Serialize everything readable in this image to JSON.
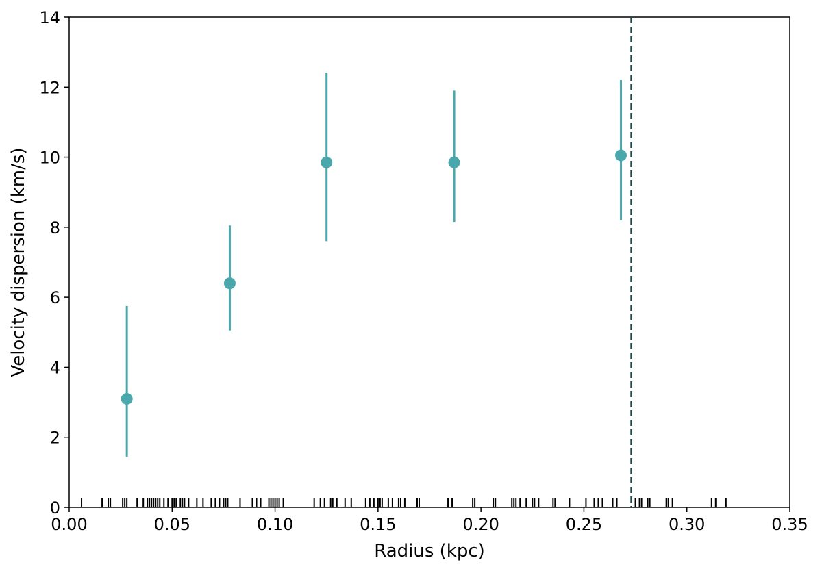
{
  "chart_data": {
    "type": "scatter",
    "xlabel": "Radius (kpc)",
    "ylabel": "Velocity dispersion (km/s)",
    "xlim": [
      0.0,
      0.35
    ],
    "ylim": [
      0,
      14
    ],
    "xticks": [
      0.0,
      0.05,
      0.1,
      0.15,
      0.2,
      0.25,
      0.3,
      0.35
    ],
    "xtick_labels": [
      "0.00",
      "0.05",
      "0.10",
      "0.15",
      "0.20",
      "0.25",
      "0.30",
      "0.35"
    ],
    "yticks": [
      0,
      2,
      4,
      6,
      8,
      10,
      12,
      14
    ],
    "ytick_labels": [
      "0",
      "2",
      "4",
      "6",
      "8",
      "10",
      "12",
      "14"
    ],
    "grid": false,
    "series": [
      {
        "color": "#4aa8ad",
        "points": [
          {
            "x": 0.028,
            "y": 3.1,
            "err_low": 1.45,
            "err_high": 5.75
          },
          {
            "x": 0.078,
            "y": 6.4,
            "err_low": 5.05,
            "err_high": 8.05
          },
          {
            "x": 0.125,
            "y": 9.85,
            "err_low": 7.6,
            "err_high": 12.4
          },
          {
            "x": 0.187,
            "y": 9.85,
            "err_low": 8.15,
            "err_high": 11.9
          },
          {
            "x": 0.268,
            "y": 10.05,
            "err_low": 8.2,
            "err_high": 12.2
          }
        ]
      }
    ],
    "vline": {
      "x": 0.273,
      "color": "#1f4a4a",
      "style": "dashed"
    },
    "rug": {
      "color": "#000000",
      "x": [
        0.006,
        0.016,
        0.019,
        0.02,
        0.026,
        0.027,
        0.028,
        0.033,
        0.036,
        0.038,
        0.039,
        0.04,
        0.041,
        0.042,
        0.043,
        0.044,
        0.046,
        0.048,
        0.05,
        0.051,
        0.052,
        0.054,
        0.055,
        0.056,
        0.058,
        0.062,
        0.065,
        0.069,
        0.071,
        0.073,
        0.075,
        0.076,
        0.077,
        0.083,
        0.089,
        0.091,
        0.093,
        0.097,
        0.098,
        0.099,
        0.1,
        0.101,
        0.102,
        0.104,
        0.119,
        0.122,
        0.124,
        0.127,
        0.128,
        0.13,
        0.134,
        0.137,
        0.144,
        0.146,
        0.148,
        0.15,
        0.151,
        0.152,
        0.155,
        0.157,
        0.16,
        0.161,
        0.163,
        0.169,
        0.17,
        0.184,
        0.186,
        0.196,
        0.197,
        0.206,
        0.207,
        0.215,
        0.216,
        0.217,
        0.219,
        0.222,
        0.225,
        0.226,
        0.228,
        0.235,
        0.236,
        0.243,
        0.251,
        0.255,
        0.257,
        0.259,
        0.264,
        0.266,
        0.275,
        0.277,
        0.278,
        0.281,
        0.282,
        0.29,
        0.291,
        0.293,
        0.312,
        0.314,
        0.319
      ]
    }
  }
}
